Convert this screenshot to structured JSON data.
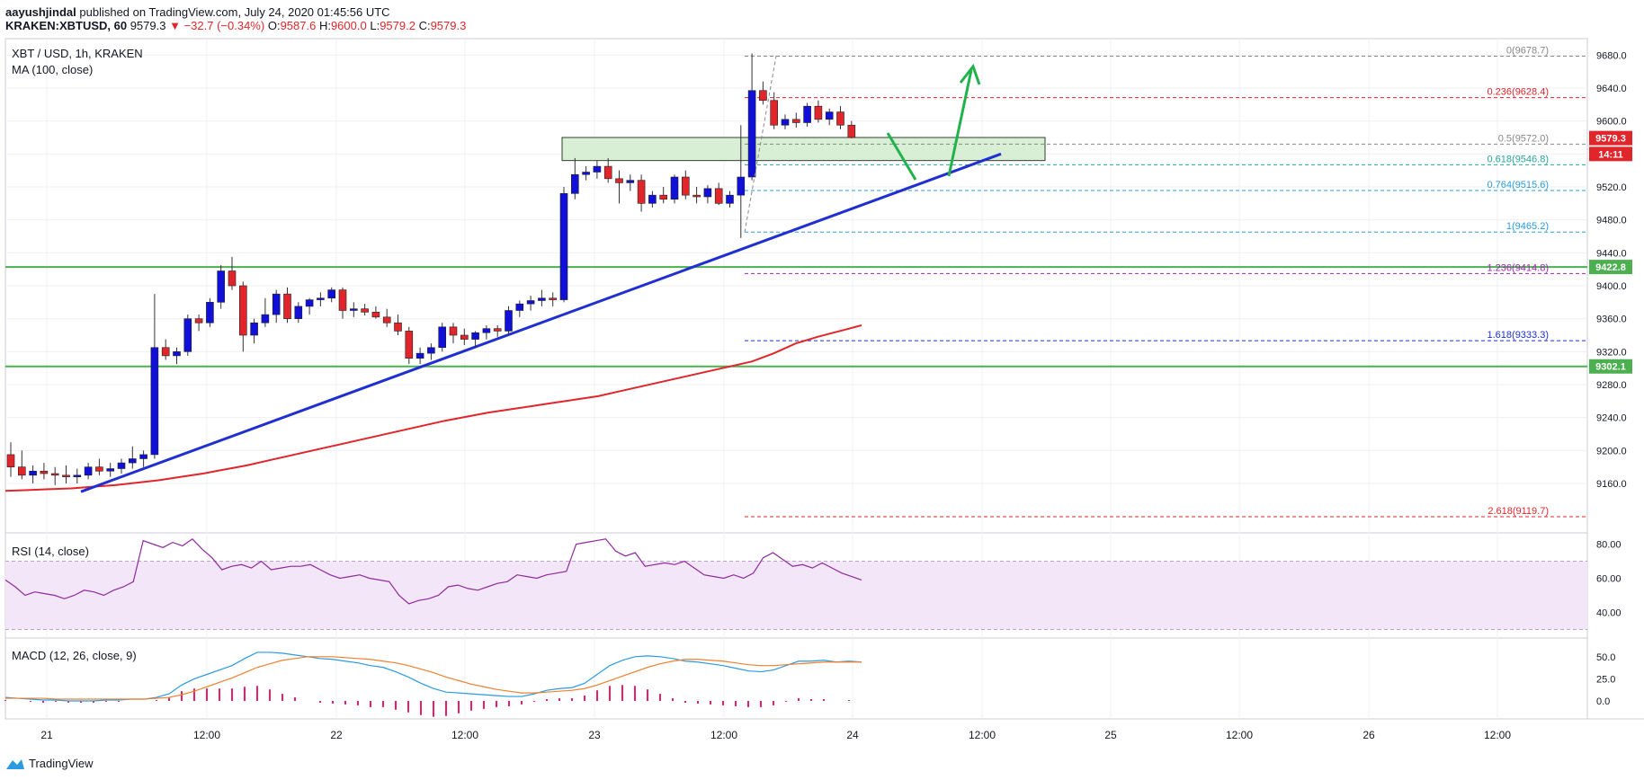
{
  "header": {
    "user": "aayushjindal",
    "published": "published on TradingView.com, July 24, 2020 01:45:56 UTC",
    "pair": "KRAKEN:XBTUSD, 60",
    "last": "9579.3",
    "change": "▼ −32.7 (−0.34%)",
    "o_label": "O:",
    "o": "9587.6",
    "h_label": "H:",
    "h": "9600.0",
    "l_label": "L:",
    "l": "9579.2",
    "c_label": "C:",
    "c": "9579.3"
  },
  "symbol_line": "XBT / USD, 1h, KRAKEN",
  "ma_label": "MA (100, close)",
  "rsi_label": "RSI (14, close)",
  "macd_label": "MACD (12, 26, close, 9)",
  "footer": {
    "brand": "TradingView"
  },
  "colors": {
    "up": "#1010d8",
    "down": "#e0262b",
    "ma": "#e0262b",
    "trendline": "#1f2fd0",
    "support": "#4caf50",
    "arrow": "#22b24c",
    "rsi": "#8e2a9c",
    "macd": "#2a9be0",
    "signal": "#f08030",
    "hist": "#e91e63"
  },
  "chart_data": {
    "type": "candlestick",
    "price_axis": {
      "min": 9100,
      "max": 9700,
      "ticks": [
        9160,
        9200,
        9240,
        9280,
        9320,
        9360,
        9400,
        9440,
        9480,
        9520,
        9560,
        9600,
        9640,
        9680
      ]
    },
    "time_labels": [
      "21",
      "12:00",
      "22",
      "12:00",
      "23",
      "12:00",
      "24",
      "12:00",
      "25",
      "12:00",
      "26",
      "12:00"
    ],
    "candles": [
      [
        9195,
        9210,
        9168,
        9180
      ],
      [
        9180,
        9200,
        9165,
        9170
      ],
      [
        9170,
        9182,
        9160,
        9175
      ],
      [
        9175,
        9185,
        9165,
        9172
      ],
      [
        9172,
        9180,
        9158,
        9170
      ],
      [
        9170,
        9182,
        9160,
        9168
      ],
      [
        9168,
        9178,
        9160,
        9170
      ],
      [
        9170,
        9185,
        9165,
        9180
      ],
      [
        9180,
        9190,
        9170,
        9175
      ],
      [
        9175,
        9185,
        9168,
        9178
      ],
      [
        9178,
        9190,
        9172,
        9185
      ],
      [
        9185,
        9205,
        9178,
        9190
      ],
      [
        9190,
        9200,
        9180,
        9195
      ],
      [
        9195,
        9390,
        9190,
        9325
      ],
      [
        9325,
        9335,
        9310,
        9315
      ],
      [
        9315,
        9325,
        9305,
        9320
      ],
      [
        9320,
        9365,
        9315,
        9360
      ],
      [
        9360,
        9365,
        9345,
        9355
      ],
      [
        9355,
        9385,
        9350,
        9380
      ],
      [
        9380,
        9425,
        9372,
        9418
      ],
      [
        9418,
        9435,
        9395,
        9400
      ],
      [
        9400,
        9405,
        9320,
        9340
      ],
      [
        9340,
        9360,
        9330,
        9355
      ],
      [
        9355,
        9385,
        9350,
        9365
      ],
      [
        9365,
        9395,
        9355,
        9390
      ],
      [
        9390,
        9398,
        9355,
        9360
      ],
      [
        9360,
        9380,
        9355,
        9375
      ],
      [
        9375,
        9385,
        9365,
        9383
      ],
      [
        9383,
        9392,
        9375,
        9385
      ],
      [
        9385,
        9398,
        9380,
        9395
      ],
      [
        9395,
        9398,
        9360,
        9370
      ],
      [
        9370,
        9380,
        9362,
        9372
      ],
      [
        9372,
        9378,
        9364,
        9368
      ],
      [
        9368,
        9375,
        9360,
        9362
      ],
      [
        9362,
        9372,
        9350,
        9355
      ],
      [
        9355,
        9365,
        9340,
        9345
      ],
      [
        9345,
        9350,
        9305,
        9312
      ],
      [
        9312,
        9325,
        9305,
        9318
      ],
      [
        9318,
        9330,
        9310,
        9325
      ],
      [
        9325,
        9355,
        9320,
        9350
      ],
      [
        9350,
        9355,
        9330,
        9340
      ],
      [
        9340,
        9348,
        9328,
        9335
      ],
      [
        9335,
        9345,
        9325,
        9343
      ],
      [
        9343,
        9352,
        9335,
        9348
      ],
      [
        9348,
        9352,
        9338,
        9345
      ],
      [
        9345,
        9375,
        9340,
        9370
      ],
      [
        9370,
        9382,
        9362,
        9378
      ],
      [
        9378,
        9388,
        9370,
        9382
      ],
      [
        9382,
        9395,
        9375,
        9385
      ],
      [
        9385,
        9392,
        9375,
        9383
      ],
      [
        9383,
        9520,
        9380,
        9512
      ],
      [
        9512,
        9555,
        9505,
        9535
      ],
      [
        9535,
        9545,
        9528,
        9538
      ],
      [
        9538,
        9552,
        9530,
        9545
      ],
      [
        9545,
        9555,
        9525,
        9530
      ],
      [
        9530,
        9540,
        9500,
        9525
      ],
      [
        9525,
        9535,
        9515,
        9528
      ],
      [
        9528,
        9535,
        9490,
        9500
      ],
      [
        9500,
        9515,
        9495,
        9510
      ],
      [
        9510,
        9520,
        9500,
        9505
      ],
      [
        9505,
        9535,
        9500,
        9532
      ],
      [
        9532,
        9540,
        9505,
        9510
      ],
      [
        9510,
        9520,
        9500,
        9508
      ],
      [
        9508,
        9522,
        9500,
        9518
      ],
      [
        9518,
        9525,
        9498,
        9500
      ],
      [
        9500,
        9515,
        9495,
        9510
      ],
      [
        9510,
        9595,
        9458,
        9532
      ],
      [
        9532,
        9682,
        9528,
        9637
      ],
      [
        9637,
        9648,
        9620,
        9625
      ],
      [
        9625,
        9635,
        9590,
        9595
      ],
      [
        9595,
        9608,
        9590,
        9602
      ],
      [
        9602,
        9610,
        9592,
        9598
      ],
      [
        9598,
        9622,
        9593,
        9618
      ],
      [
        9618,
        9625,
        9598,
        9602
      ],
      [
        9602,
        9615,
        9595,
        9611
      ],
      [
        9611,
        9618,
        9590,
        9595
      ],
      [
        9595,
        9600,
        9579,
        9580
      ]
    ],
    "moving_average_100": [
      9151,
      9152,
      9153,
      9154,
      9156,
      9158,
      9161,
      9164,
      9168,
      9172,
      9177,
      9182,
      9188,
      9194,
      9200,
      9206,
      9212,
      9218,
      9224,
      9230,
      9236,
      9241,
      9246,
      9250,
      9254,
      9258,
      9262,
      9266,
      9272,
      9278,
      9284,
      9290,
      9296,
      9302,
      9308,
      9318,
      9330,
      9338,
      9345,
      9352
    ],
    "trendline": {
      "from": [
        0,
        9150
      ],
      "to": [
        77,
        9560
      ]
    },
    "support_levels": [
      9422.8,
      9302.1
    ],
    "resistance_box": {
      "low": 9560,
      "high": 9572,
      "from_idx": 43,
      "to_idx": 84
    },
    "fibonacci": [
      {
        "label": "0(9678.7)",
        "value": 9678.7,
        "color": "#888888"
      },
      {
        "label": "0.236(9628.4)",
        "value": 9628.4,
        "color": "#e0262b"
      },
      {
        "label": "0.5(9572.0)",
        "value": 9572.0,
        "color": "#888888"
      },
      {
        "label": "0.618(9546.8)",
        "value": 9546.8,
        "color": "#26a69a"
      },
      {
        "label": "0.764(9515.6)",
        "value": 9515.6,
        "color": "#2a9be0"
      },
      {
        "label": "1(9465.2)",
        "value": 9465.2,
        "color": "#2a9be0"
      },
      {
        "label": "1.236(9414.8)",
        "value": 9414.8,
        "color": "#9c27b0"
      },
      {
        "label": "1.618(9333.3)",
        "value": 9333.3,
        "color": "#1f2fd0"
      },
      {
        "label": "2.618(9119.7)",
        "value": 9119.7,
        "color": "#e0262b"
      }
    ],
    "axis_badges": [
      {
        "text": "9579.3",
        "value": 9579.3,
        "bg": "#e0262b"
      },
      {
        "text": "14:11",
        "value": 9560,
        "bg": "#e0262b"
      },
      {
        "text": "9422.8",
        "value": 9422.8,
        "bg": "#4caf50"
      },
      {
        "text": "9302.1",
        "value": 9302.1,
        "bg": "#4caf50"
      }
    ],
    "rsi": {
      "ticks": [
        40,
        60,
        80
      ],
      "upper": 70,
      "lower": 30,
      "values": [
        59,
        55,
        50,
        52,
        51,
        50,
        48,
        50,
        53,
        52,
        50,
        53,
        55,
        58,
        82,
        80,
        78,
        81,
        79,
        83,
        77,
        72,
        65,
        67,
        68,
        66,
        70,
        65,
        66,
        67,
        67,
        68,
        65,
        62,
        60,
        61,
        62,
        60,
        59,
        58,
        50,
        45,
        47,
        48,
        50,
        55,
        56,
        54,
        53,
        55,
        57,
        58,
        62,
        61,
        60,
        62,
        63,
        64,
        80,
        81,
        82,
        83,
        76,
        73,
        75,
        67,
        68,
        69,
        68,
        70,
        66,
        62,
        61,
        60,
        62,
        60,
        63,
        72,
        75,
        71,
        67,
        68,
        66,
        69,
        66,
        63,
        61,
        59
      ]
    },
    "macd": {
      "ticks": [
        0.0,
        25.0,
        50.0
      ],
      "macd": [
        4,
        3,
        2,
        1,
        1,
        0,
        0,
        0,
        1,
        1,
        2,
        2,
        4,
        8,
        18,
        25,
        30,
        35,
        40,
        48,
        55,
        55,
        54,
        52,
        50,
        48,
        47,
        45,
        43,
        40,
        38,
        33,
        27,
        20,
        14,
        10,
        9,
        8,
        7,
        6,
        5,
        5,
        8,
        12,
        14,
        15,
        20,
        30,
        40,
        46,
        50,
        51,
        50,
        48,
        45,
        44,
        42,
        40,
        37,
        34,
        33,
        35,
        40,
        45,
        45,
        46,
        44,
        45,
        44
      ],
      "signal": [
        3,
        3,
        3,
        3,
        2,
        2,
        2,
        2,
        2,
        2,
        2,
        2,
        3,
        4,
        7,
        11,
        16,
        21,
        26,
        32,
        38,
        42,
        46,
        48,
        50,
        50,
        50,
        49,
        48,
        47,
        45,
        43,
        40,
        36,
        32,
        27,
        23,
        19,
        16,
        13,
        11,
        9,
        9,
        10,
        11,
        12,
        14,
        18,
        23,
        28,
        33,
        38,
        42,
        45,
        47,
        47,
        46,
        45,
        43,
        41,
        40,
        40,
        41,
        42,
        43,
        44,
        44,
        44,
        44
      ],
      "hist": [
        1,
        0,
        -1,
        -2,
        -1,
        -2,
        -2,
        -2,
        -1,
        -1,
        0,
        0,
        1,
        4,
        11,
        14,
        14,
        14,
        14,
        16,
        17,
        13,
        8,
        4,
        0,
        -2,
        -3,
        -4,
        -5,
        -7,
        -7,
        -10,
        -13,
        -16,
        -18,
        -17,
        -14,
        -11,
        -9,
        -7,
        -6,
        -4,
        -1,
        2,
        3,
        3,
        6,
        12,
        17,
        18,
        17,
        13,
        8,
        3,
        -2,
        -3,
        -4,
        -5,
        -6,
        -7,
        -7,
        -5,
        -1,
        3,
        2,
        2,
        0,
        1,
        0
      ]
    }
  }
}
